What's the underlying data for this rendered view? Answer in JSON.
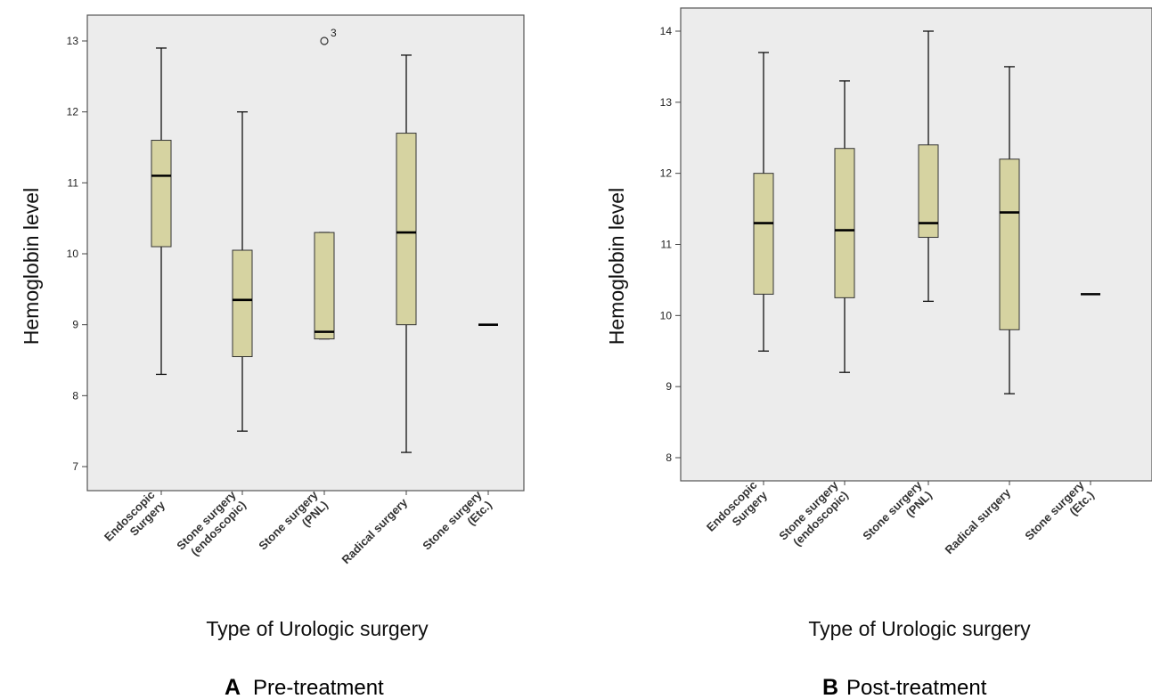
{
  "chart_data": [
    {
      "type": "boxplot",
      "panel_letter": "A",
      "panel_title": "Pre-treatment",
      "ylabel": "Hemoglobin level",
      "xlabel": "Type of  Urologic surgery",
      "ylim": [
        6.7,
        13.35
      ],
      "yticks": [
        "7",
        "8",
        "9",
        "10",
        "11",
        "12",
        "13"
      ],
      "box_color": "#d6d3a1",
      "plot_bg": "#ececec",
      "grid": false,
      "categories": [
        [
          "Endoscopic",
          "Surgery"
        ],
        [
          "Stone surgery",
          "(endoscopic)"
        ],
        [
          "Stone surgery",
          "(PNL)"
        ],
        [
          "Radical surgery"
        ],
        [
          "Stone surgery",
          "(Etc.)"
        ]
      ],
      "boxes": [
        {
          "min": 8.3,
          "q1": 10.1,
          "median": 11.1,
          "q3": 11.6,
          "max": 12.9
        },
        {
          "min": 7.5,
          "q1": 8.55,
          "median": 9.35,
          "q3": 10.05,
          "max": 12.0
        },
        {
          "min": 8.8,
          "q1": 8.8,
          "median": 8.9,
          "q3": 10.3,
          "max": 10.3
        },
        {
          "min": 7.2,
          "q1": 9.0,
          "median": 10.3,
          "q3": 11.7,
          "max": 12.8
        },
        {
          "min": 9.0,
          "q1": 9.0,
          "median": 9.0,
          "q3": 9.0,
          "max": 9.0
        }
      ],
      "outliers": [
        {
          "category_index": 2,
          "value": 13.0,
          "label": "3"
        }
      ]
    },
    {
      "type": "boxplot",
      "panel_letter": "B",
      "panel_title": "Post-treatment",
      "ylabel": "Hemoglobin level",
      "xlabel": "Type of  Urologic surgery",
      "ylim": [
        7.7,
        14.35
      ],
      "yticks": [
        "8",
        "9",
        "10",
        "11",
        "12",
        "13",
        "14"
      ],
      "box_color": "#d6d3a1",
      "plot_bg": "#ececec",
      "grid": false,
      "categories": [
        [
          "Endoscopic",
          "Surgery"
        ],
        [
          "Stone surgery",
          "(endoscopic)"
        ],
        [
          "Stone surgery",
          "(PNL)"
        ],
        [
          "Radical surgery"
        ],
        [
          "Stone surgery",
          "(Etc.)"
        ]
      ],
      "boxes": [
        {
          "min": 9.5,
          "q1": 10.3,
          "median": 11.3,
          "q3": 12.0,
          "max": 13.7
        },
        {
          "min": 9.2,
          "q1": 10.25,
          "median": 11.2,
          "q3": 12.35,
          "max": 13.3
        },
        {
          "min": 10.2,
          "q1": 11.1,
          "median": 11.3,
          "q3": 12.4,
          "max": 14.0
        },
        {
          "min": 8.9,
          "q1": 9.8,
          "median": 11.45,
          "q3": 12.2,
          "max": 13.5
        },
        {
          "min": 10.3,
          "q1": 10.3,
          "median": 10.3,
          "q3": 10.3,
          "max": 10.3
        }
      ],
      "outliers": []
    }
  ]
}
